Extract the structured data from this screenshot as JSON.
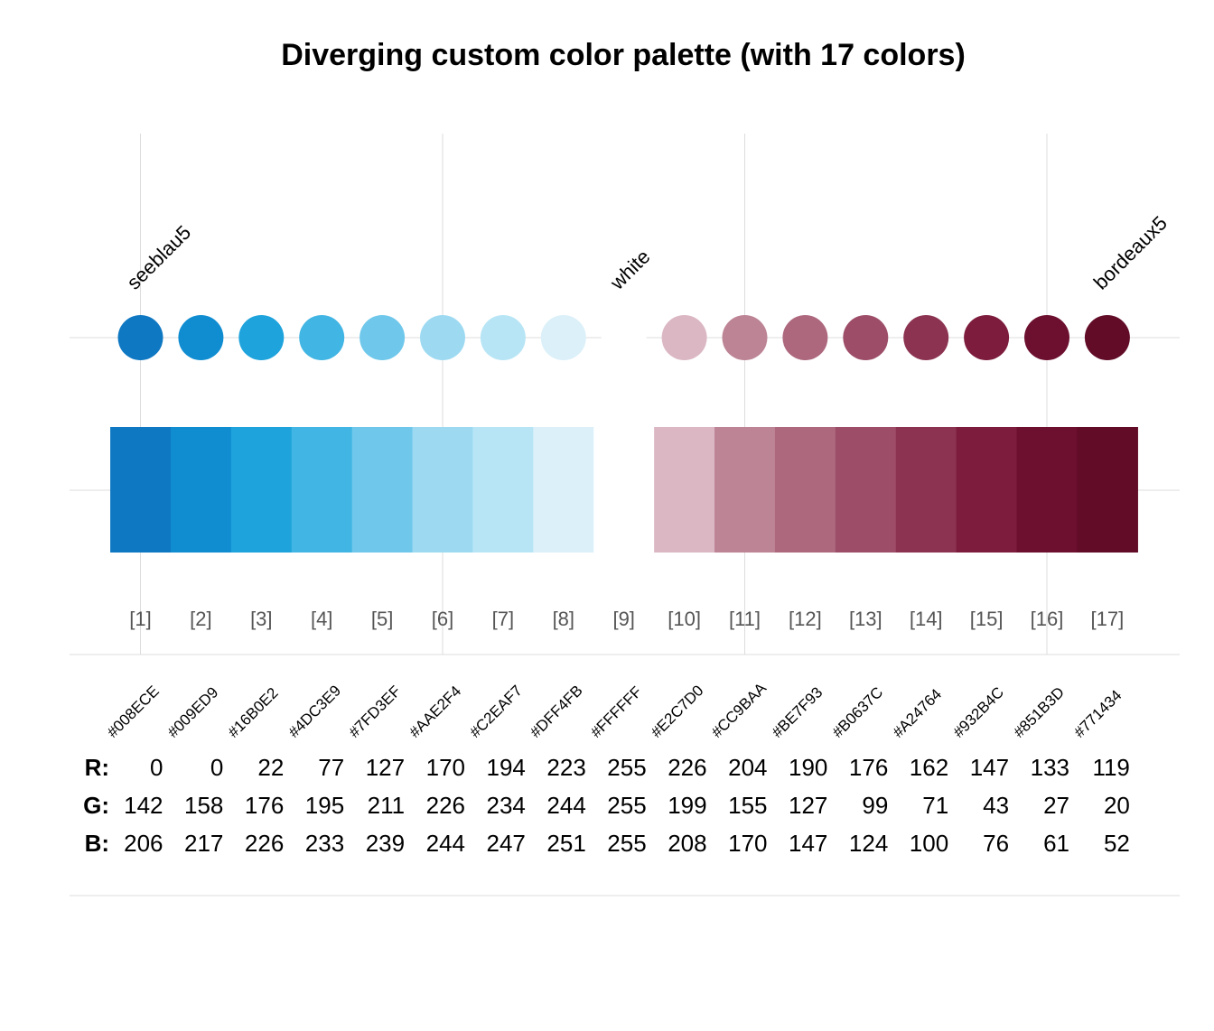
{
  "chart_data": {
    "type": "palette",
    "title": "Diverging custom color palette (with 17 colors)",
    "n_colors": 17,
    "index_labels": [
      "[1]",
      "[2]",
      "[3]",
      "[4]",
      "[5]",
      "[6]",
      "[7]",
      "[8]",
      "[9]",
      "[10]",
      "[11]",
      "[12]",
      "[13]",
      "[14]",
      "[15]",
      "[16]",
      "[17]"
    ],
    "hex": [
      "#008ECE",
      "#009ED9",
      "#16B0E2",
      "#4DC3E9",
      "#7FD3EF",
      "#AAE2F4",
      "#C2EAF7",
      "#DFF4FB",
      "#FFFFFF",
      "#E2C7D0",
      "#CC9BAA",
      "#BE7F93",
      "#B0637C",
      "#A24764",
      "#932B4C",
      "#851B3D",
      "#771434"
    ],
    "colors": [
      "#0F78C2",
      "#108DD1",
      "#1EA3DC",
      "#41B5E3",
      "#6FC8EB",
      "#9DDAF2",
      "#B7E5F5",
      "#DBF0F9",
      "#FFFFFF",
      "#DBB7C4",
      "#BD8495",
      "#AD687E",
      "#9D4D68",
      "#8C3352",
      "#7D1C3C",
      "#6D0F2F",
      "#620C28"
    ],
    "named_colors": [
      {
        "index": 1,
        "name": "seeblau5"
      },
      {
        "index": 9,
        "name": "white"
      },
      {
        "index": 17,
        "name": "bordeaux5"
      }
    ],
    "rgb_row_labels": [
      "R:",
      "G:",
      "B:"
    ],
    "R": [
      0,
      0,
      22,
      77,
      127,
      170,
      194,
      223,
      255,
      226,
      204,
      190,
      176,
      162,
      147,
      133,
      119
    ],
    "G": [
      142,
      158,
      176,
      195,
      211,
      226,
      234,
      244,
      255,
      199,
      155,
      127,
      99,
      71,
      43,
      27,
      20
    ],
    "B": [
      206,
      217,
      226,
      233,
      239,
      244,
      247,
      251,
      255,
      208,
      170,
      147,
      124,
      100,
      76,
      61,
      52
    ],
    "grid": true
  }
}
